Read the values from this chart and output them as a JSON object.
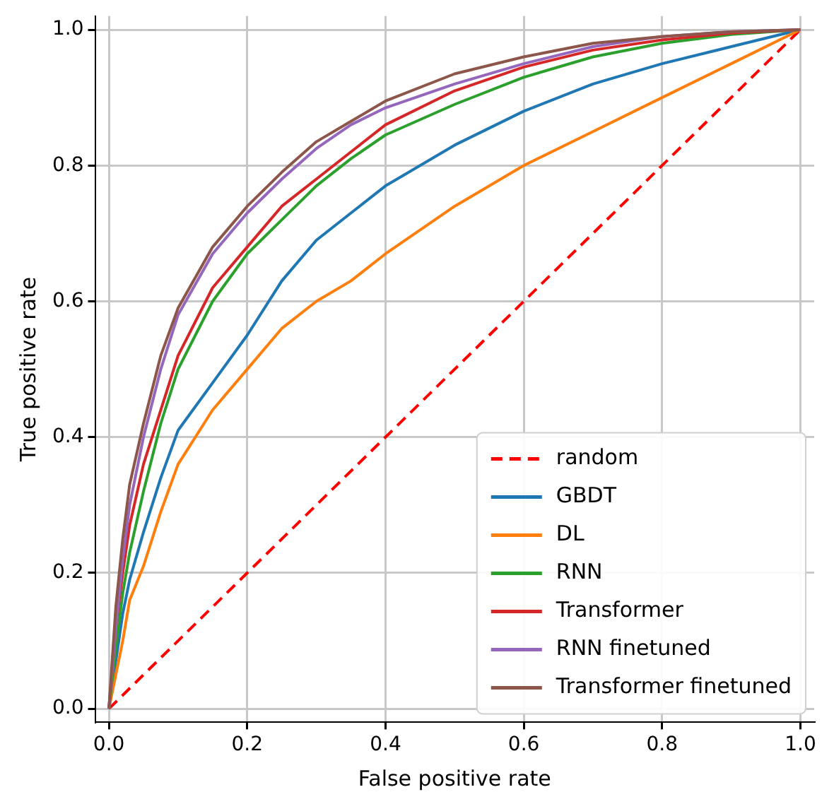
{
  "chart_data": {
    "type": "line",
    "xlabel": "False positive rate",
    "ylabel": "True positive rate",
    "x": [
      0,
      0.01,
      0.02,
      0.03,
      0.05,
      0.075,
      0.1,
      0.15,
      0.2,
      0.25,
      0.3,
      0.35,
      0.4,
      0.5,
      0.6,
      0.7,
      0.8,
      0.9,
      1
    ],
    "xlim": [
      -0.02,
      1.02
    ],
    "ylim": [
      -0.02,
      1.02
    ],
    "xticks": [
      {
        "value": 0,
        "label": "0.0"
      },
      0.2,
      0.4,
      0.6,
      0.8,
      {
        "value": 1,
        "label": "1.0"
      }
    ],
    "yticks": [
      {
        "value": 0,
        "label": "0.0"
      },
      0.2,
      0.4,
      0.6,
      0.8,
      {
        "value": 1,
        "label": "1.0"
      }
    ],
    "grid": true,
    "legend": "bottom right",
    "marker": "none",
    "series": [
      {
        "name": "random",
        "color": "#ff0000",
        "line_style": "dashed",
        "x": [
          0,
          1
        ],
        "values": [
          0,
          1
        ]
      },
      {
        "name": "GBDT",
        "color": "#1f77b4",
        "values": [
          0,
          0.07,
          0.14,
          0.19,
          0.26,
          0.34,
          0.41,
          0.48,
          0.55,
          0.63,
          0.69,
          0.73,
          0.77,
          0.83,
          0.88,
          0.92,
          0.95,
          0.975,
          1
        ]
      },
      {
        "name": "DL",
        "color": "#ff7f0e",
        "values": [
          0,
          0.05,
          0.1,
          0.16,
          0.21,
          0.29,
          0.36,
          0.44,
          0.5,
          0.56,
          0.6,
          0.63,
          0.67,
          0.74,
          0.8,
          0.85,
          0.9,
          0.95,
          1
        ]
      },
      {
        "name": "RNN",
        "color": "#2ca02c",
        "values": [
          0,
          0.09,
          0.17,
          0.23,
          0.32,
          0.42,
          0.5,
          0.6,
          0.67,
          0.72,
          0.77,
          0.81,
          0.845,
          0.89,
          0.93,
          0.96,
          0.98,
          0.993,
          1
        ]
      },
      {
        "name": "Transformer",
        "color": "#d62728",
        "values": [
          0,
          0.12,
          0.2,
          0.27,
          0.36,
          0.44,
          0.52,
          0.62,
          0.68,
          0.74,
          0.78,
          0.82,
          0.86,
          0.91,
          0.945,
          0.97,
          0.985,
          0.995,
          1
        ]
      },
      {
        "name": "RNN finetuned",
        "color": "#9467bd",
        "values": [
          0,
          0.12,
          0.22,
          0.3,
          0.4,
          0.5,
          0.58,
          0.67,
          0.73,
          0.78,
          0.825,
          0.86,
          0.885,
          0.92,
          0.95,
          0.975,
          0.99,
          0.997,
          1
        ]
      },
      {
        "name": "Transformer finetuned",
        "color": "#8c564b",
        "values": [
          0,
          0.15,
          0.25,
          0.33,
          0.42,
          0.52,
          0.59,
          0.68,
          0.74,
          0.79,
          0.835,
          0.865,
          0.895,
          0.935,
          0.96,
          0.98,
          0.99,
          0.997,
          1
        ]
      }
    ]
  }
}
